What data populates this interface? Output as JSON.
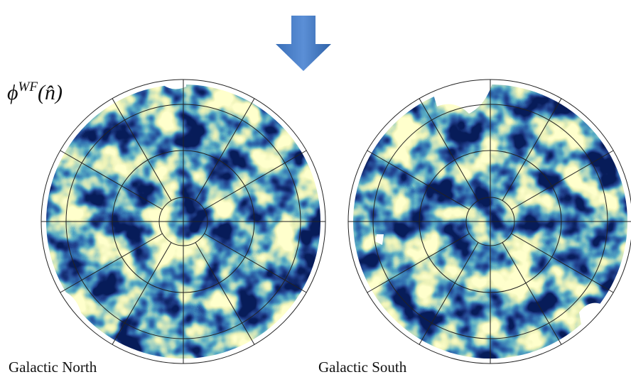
{
  "figure": {
    "field_symbol": "ϕ",
    "field_superscript": "WF",
    "field_argument": "(n̂)",
    "maps": [
      {
        "caption": "Galactic North"
      },
      {
        "caption": "Galactic South"
      }
    ]
  }
}
